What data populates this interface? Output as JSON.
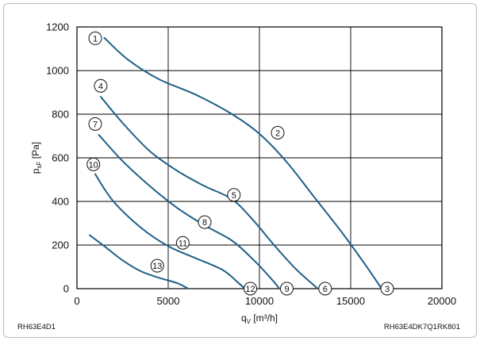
{
  "chart_data": {
    "type": "line",
    "xlabel_main": "q",
    "xlabel_sub": "V",
    "xlabel_unit": " [m³/h]",
    "ylabel_main": "p",
    "ylabel_sub": "sF",
    "ylabel_unit": " [Pa]",
    "xlim": [
      0,
      20000
    ],
    "ylim": [
      0,
      1200
    ],
    "xticks": [
      0,
      5000,
      10000,
      15000,
      20000
    ],
    "yticks": [
      0,
      200,
      400,
      600,
      800,
      1000,
      1200
    ],
    "grid": true,
    "line_color": "#1f5f88",
    "series": [
      {
        "label": "2",
        "points": [
          [
            1500,
            1150
          ],
          [
            2800,
            1050
          ],
          [
            4500,
            960
          ],
          [
            6500,
            890
          ],
          [
            8500,
            800
          ],
          [
            10000,
            710
          ],
          [
            11500,
            580
          ],
          [
            13000,
            420
          ],
          [
            14500,
            260
          ],
          [
            15800,
            110
          ],
          [
            16700,
            0
          ]
        ],
        "markers": [
          {
            "label": "1",
            "x": 1000,
            "y": 1148
          },
          {
            "label": "2",
            "x": 11000,
            "y": 715
          },
          {
            "label": "3",
            "x": 17000,
            "y": 0
          }
        ]
      },
      {
        "label": "6",
        "points": [
          [
            1300,
            880
          ],
          [
            2500,
            760
          ],
          [
            4000,
            630
          ],
          [
            5500,
            540
          ],
          [
            7000,
            470
          ],
          [
            8500,
            410
          ],
          [
            9700,
            310
          ],
          [
            10800,
            200
          ],
          [
            12000,
            90
          ],
          [
            13200,
            0
          ]
        ],
        "markers": [
          {
            "label": "4",
            "x": 1300,
            "y": 930
          },
          {
            "label": "5",
            "x": 8600,
            "y": 430
          },
          {
            "label": "6",
            "x": 13600,
            "y": 0
          }
        ]
      },
      {
        "label": "9",
        "points": [
          [
            1200,
            705
          ],
          [
            2500,
            585
          ],
          [
            4000,
            470
          ],
          [
            5500,
            370
          ],
          [
            7000,
            290
          ],
          [
            8500,
            220
          ],
          [
            9700,
            130
          ],
          [
            10600,
            50
          ],
          [
            11100,
            0
          ]
        ],
        "markers": [
          {
            "label": "7",
            "x": 1000,
            "y": 755
          },
          {
            "label": "8",
            "x": 7000,
            "y": 305
          },
          {
            "label": "9",
            "x": 11500,
            "y": 0
          }
        ]
      },
      {
        "label": "12",
        "points": [
          [
            1000,
            525
          ],
          [
            2000,
            400
          ],
          [
            3500,
            280
          ],
          [
            5000,
            195
          ],
          [
            6500,
            140
          ],
          [
            8000,
            85
          ],
          [
            8800,
            30
          ],
          [
            9200,
            0
          ]
        ],
        "markers": [
          {
            "label": "10",
            "x": 900,
            "y": 570
          },
          {
            "label": "11",
            "x": 5800,
            "y": 210
          },
          {
            "label": "12",
            "x": 9500,
            "y": 0
          }
        ]
      },
      {
        "label": "13",
        "points": [
          [
            700,
            245
          ],
          [
            1500,
            195
          ],
          [
            2500,
            130
          ],
          [
            3500,
            80
          ],
          [
            4500,
            50
          ],
          [
            5500,
            25
          ],
          [
            6100,
            0
          ]
        ],
        "markers": [
          {
            "label": "13",
            "x": 4400,
            "y": 105
          }
        ]
      }
    ]
  },
  "footer": {
    "left": "RH63E4D1",
    "right": "RH63E4DK7Q1RK801"
  }
}
